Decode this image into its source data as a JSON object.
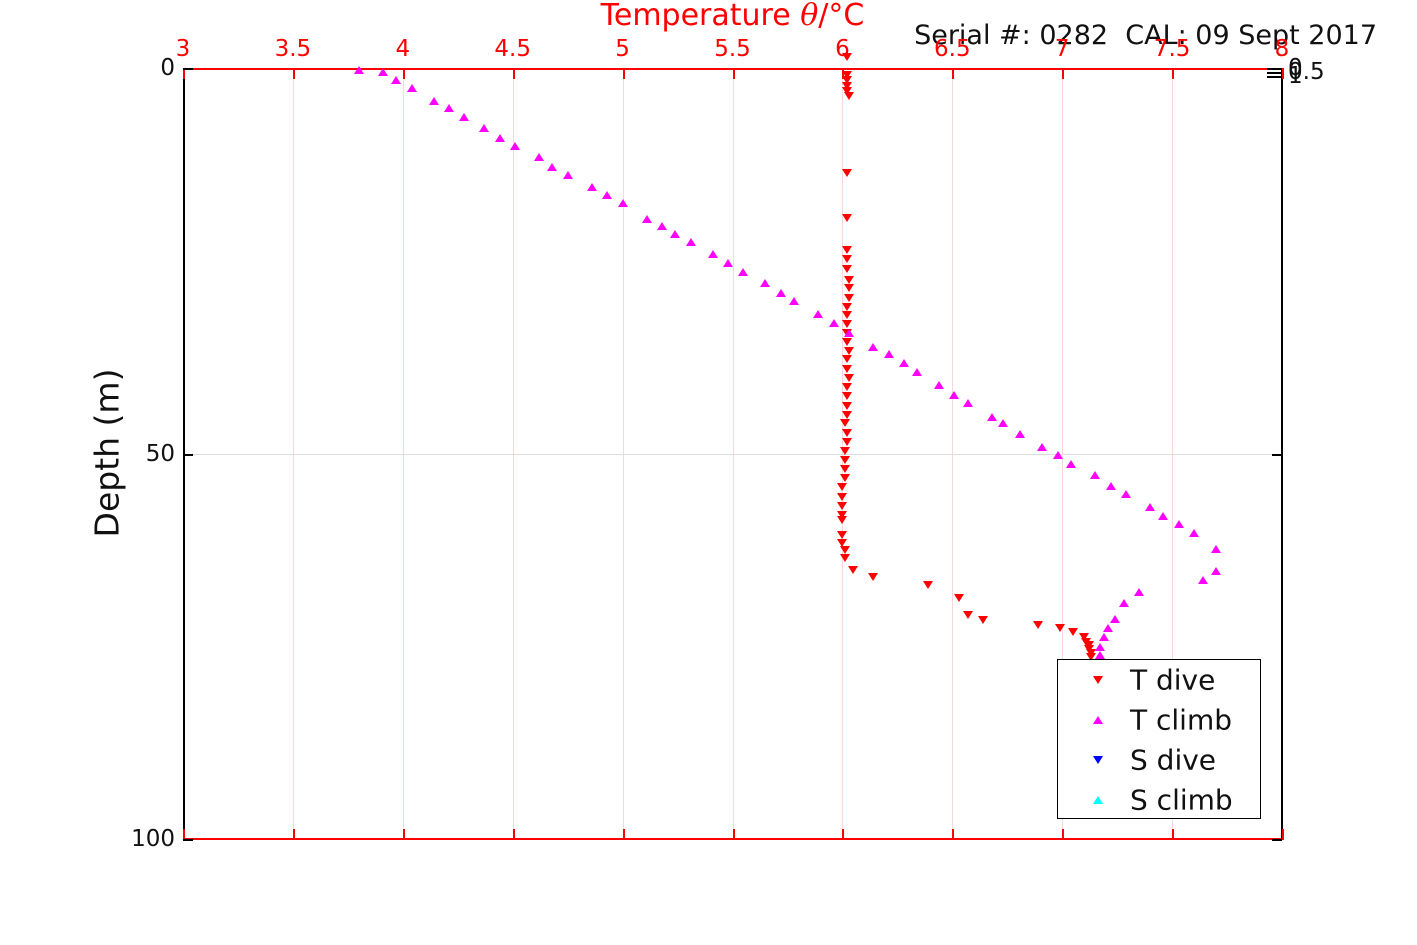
{
  "header": {
    "title_prefix": "Temperature ",
    "title_theta": "θ",
    "title_suffix": "/°C",
    "serial_text": "Serial #: 0282  CAL: 09 Sept 2017"
  },
  "colors": {
    "x_axis_red": "#ff0000",
    "y_axis_black": "#000000",
    "grid_vertical_pink": "#f8d8d8",
    "grid_horizontal_gray": "#dcdcdc",
    "title_red": "#ff0000",
    "t_dive_red": "#ff0000",
    "t_climb_magenta": "#ff00ff",
    "s_dive_blue": "#0000ff",
    "s_climb_cyan": "#00ffff"
  },
  "chart_data": {
    "type": "scatter",
    "title": "Temperature θ/°C",
    "annotation": "Serial #: 0282  CAL: 09 Sept 2017",
    "xlabel": "Temperature θ/°C",
    "x_axis_position": "top",
    "xlim": [
      3,
      8
    ],
    "x_ticks": [
      "3",
      "3.5",
      "4",
      "4.5",
      "5",
      "5.5",
      "6",
      "6.5",
      "7",
      "7.5",
      "8"
    ],
    "ylabel": "Depth (m)",
    "ylim": [
      0,
      100
    ],
    "y_direction": "reverse",
    "y_ticks": [
      "0",
      "50",
      "100"
    ],
    "right_axis_ticks": [
      "0",
      "0.5",
      "1"
    ],
    "grid": true,
    "legend_position": "lower right",
    "legend_entries": [
      "T dive",
      "T climb",
      "S dive",
      "S climb"
    ],
    "series": [
      {
        "name": "T dive",
        "marker": "triangle-down",
        "color": "#ff0000",
        "points": [
          [
            6.02,
            -1.4
          ],
          [
            6.02,
            0.9
          ],
          [
            6.02,
            1.6
          ],
          [
            6.02,
            2.3
          ],
          [
            6.02,
            3.0
          ],
          [
            6.03,
            3.6
          ],
          [
            6.02,
            13.6
          ],
          [
            6.02,
            19.4
          ],
          [
            6.02,
            23.6
          ],
          [
            6.02,
            24.8
          ],
          [
            6.02,
            26.1
          ],
          [
            6.03,
            27.5
          ],
          [
            6.03,
            28.5
          ],
          [
            6.03,
            29.8
          ],
          [
            6.02,
            31.0
          ],
          [
            6.02,
            32.0
          ],
          [
            6.02,
            33.2
          ],
          [
            6.02,
            34.4
          ],
          [
            6.02,
            35.5
          ],
          [
            6.03,
            36.7
          ],
          [
            6.02,
            37.8
          ],
          [
            6.02,
            39.0
          ],
          [
            6.03,
            40.2
          ],
          [
            6.02,
            41.4
          ],
          [
            6.02,
            42.6
          ],
          [
            6.02,
            43.8
          ],
          [
            6.02,
            45.0
          ],
          [
            6.01,
            46.1
          ],
          [
            6.02,
            47.3
          ],
          [
            6.02,
            48.5
          ],
          [
            6.01,
            49.7
          ],
          [
            6.01,
            50.9
          ],
          [
            6.01,
            52.0
          ],
          [
            6.01,
            53.2
          ],
          [
            6.0,
            54.4
          ],
          [
            6.0,
            55.6
          ],
          [
            6.0,
            56.8
          ],
          [
            6.0,
            58.0
          ],
          [
            6.0,
            58.6
          ],
          [
            6.0,
            60.6
          ],
          [
            6.0,
            61.6
          ],
          [
            6.01,
            62.5
          ],
          [
            6.01,
            63.6
          ],
          [
            6.05,
            65.1
          ],
          [
            6.14,
            66.0
          ],
          [
            6.39,
            67.0
          ],
          [
            6.53,
            68.7
          ],
          [
            6.57,
            70.9
          ],
          [
            6.64,
            71.6
          ],
          [
            6.89,
            72.2
          ],
          [
            6.99,
            72.6
          ],
          [
            7.05,
            73.2
          ],
          [
            7.1,
            73.8
          ],
          [
            7.11,
            74.4
          ],
          [
            7.12,
            74.9
          ],
          [
            7.12,
            75.4
          ],
          [
            7.13,
            75.9
          ],
          [
            7.13,
            76.4
          ]
        ]
      },
      {
        "name": "T climb",
        "marker": "triangle-up",
        "color": "#ff00ff",
        "points": [
          [
            3.8,
            0.3
          ],
          [
            3.91,
            0.5
          ],
          [
            3.97,
            1.6
          ],
          [
            4.04,
            2.6
          ],
          [
            4.14,
            4.3
          ],
          [
            4.21,
            5.2
          ],
          [
            4.28,
            6.4
          ],
          [
            4.37,
            7.8
          ],
          [
            4.44,
            9.1
          ],
          [
            4.51,
            10.1
          ],
          [
            4.62,
            11.5
          ],
          [
            4.68,
            12.8
          ],
          [
            4.75,
            13.9
          ],
          [
            4.86,
            15.4
          ],
          [
            4.93,
            16.5
          ],
          [
            5.0,
            17.5
          ],
          [
            5.11,
            19.6
          ],
          [
            5.18,
            20.5
          ],
          [
            5.24,
            21.5
          ],
          [
            5.31,
            22.6
          ],
          [
            5.41,
            24.1
          ],
          [
            5.48,
            25.3
          ],
          [
            5.55,
            26.5
          ],
          [
            5.65,
            27.9
          ],
          [
            5.72,
            29.2
          ],
          [
            5.78,
            30.2
          ],
          [
            5.89,
            31.9
          ],
          [
            5.96,
            33.1
          ],
          [
            6.03,
            34.4
          ],
          [
            6.14,
            36.2
          ],
          [
            6.21,
            37.1
          ],
          [
            6.28,
            38.3
          ],
          [
            6.34,
            39.4
          ],
          [
            6.44,
            41.1
          ],
          [
            6.51,
            42.4
          ],
          [
            6.57,
            43.4
          ],
          [
            6.68,
            45.3
          ],
          [
            6.73,
            46.0
          ],
          [
            6.81,
            47.5
          ],
          [
            6.91,
            49.2
          ],
          [
            6.98,
            50.2
          ],
          [
            7.04,
            51.4
          ],
          [
            7.15,
            52.8
          ],
          [
            7.22,
            54.2
          ],
          [
            7.29,
            55.3
          ],
          [
            7.4,
            56.9
          ],
          [
            7.46,
            58.1
          ],
          [
            7.53,
            59.1
          ],
          [
            7.6,
            60.3
          ],
          [
            7.7,
            62.4
          ],
          [
            7.7,
            65.2
          ],
          [
            7.64,
            66.4
          ],
          [
            7.35,
            68.0
          ],
          [
            7.28,
            69.4
          ],
          [
            7.24,
            71.5
          ],
          [
            7.21,
            72.6
          ],
          [
            7.19,
            73.8
          ],
          [
            7.17,
            75.1
          ],
          [
            7.17,
            76.1
          ]
        ]
      },
      {
        "name": "S dive",
        "marker": "triangle-down",
        "color": "#0000ff",
        "points": []
      },
      {
        "name": "S climb",
        "marker": "triangle-up",
        "color": "#00ffff",
        "points": []
      }
    ]
  }
}
